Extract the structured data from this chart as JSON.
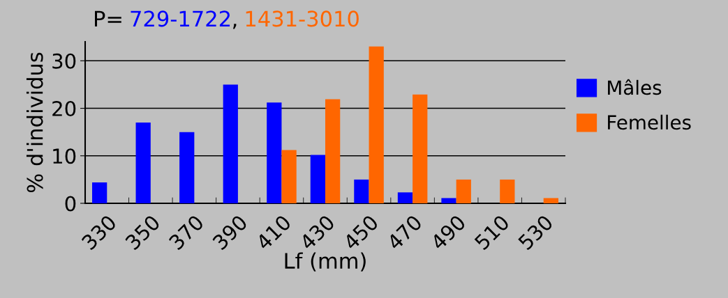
{
  "chart_data": {
    "type": "bar",
    "title": "P=",
    "annotations": [
      "729-1722",
      ",",
      "1431-3010"
    ],
    "xlabel": "Lf (mm)",
    "ylabel": "% d'individus",
    "categories": [
      "330",
      "350",
      "370",
      "390",
      "410",
      "430",
      "450",
      "470",
      "490",
      "510",
      "530"
    ],
    "series": [
      {
        "name": "Mâles",
        "color": "#0000ff",
        "values": [
          4.4,
          17,
          15,
          25,
          21.2,
          10.2,
          5,
          2.3,
          1.1,
          0,
          0
        ]
      },
      {
        "name": "Femelles",
        "color": "#ff6600",
        "values": [
          0,
          0,
          0,
          0,
          11.2,
          21.9,
          33,
          22.9,
          5,
          5,
          1.1
        ]
      }
    ],
    "ylim": [
      0,
      34
    ],
    "yticks": [
      0,
      10,
      20,
      30
    ],
    "grid": "y",
    "legend": "right"
  }
}
